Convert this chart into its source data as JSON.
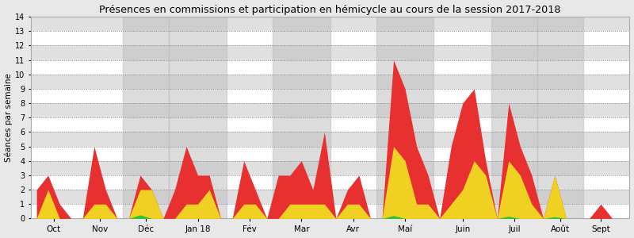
{
  "title": "Présences en commissions et participation en hémicycle au cours de la session 2017-2018",
  "ylabel": "Séances par semaine",
  "ylim": [
    0,
    14
  ],
  "yticks": [
    0,
    1,
    2,
    3,
    4,
    5,
    6,
    7,
    8,
    9,
    10,
    11,
    12,
    13,
    14
  ],
  "bg_color": "#e8e8e8",
  "bg_stripe_light": "#ebebeb",
  "bg_stripe_dark": "#c8c8c8",
  "month_labels": [
    "Oct",
    "Nov",
    "Déc",
    "Jan 18",
    "Fév",
    "Mar",
    "Avr",
    "Maí",
    "Juin",
    "Juil",
    "Août",
    "Sept"
  ],
  "month_starts": [
    0,
    4,
    8,
    12,
    17,
    21,
    26,
    30,
    35,
    40,
    44,
    48
  ],
  "month_ends": [
    4,
    8,
    12,
    17,
    21,
    26,
    30,
    35,
    40,
    44,
    48,
    51
  ],
  "shade_months": [
    2,
    3,
    5,
    7,
    9,
    10
  ],
  "n_points": 52,
  "x": [
    0,
    1,
    2,
    3,
    4,
    5,
    6,
    7,
    8,
    9,
    10,
    11,
    12,
    13,
    14,
    15,
    16,
    17,
    18,
    19,
    20,
    21,
    22,
    23,
    24,
    25,
    26,
    27,
    28,
    29,
    30,
    31,
    32,
    33,
    34,
    35,
    36,
    37,
    38,
    39,
    40,
    41,
    42,
    43,
    44,
    45,
    46,
    47,
    48,
    49,
    50,
    51
  ],
  "red": [
    2,
    3,
    1,
    0,
    0,
    5,
    2,
    0,
    0,
    3,
    2,
    0,
    2,
    5,
    3,
    3,
    0,
    0,
    4,
    2,
    0,
    3,
    3,
    4,
    2,
    6,
    0,
    2,
    3,
    0,
    0,
    11,
    9,
    5,
    3,
    0,
    5,
    8,
    9,
    4,
    0,
    8,
    5,
    3,
    0,
    3,
    0,
    0,
    0,
    1,
    0,
    0
  ],
  "yellow": [
    0,
    2,
    0,
    0,
    0,
    1,
    1,
    0,
    0,
    2,
    2,
    0,
    0,
    1,
    1,
    2,
    0,
    0,
    1,
    1,
    0,
    0,
    1,
    1,
    1,
    1,
    0,
    1,
    1,
    0,
    0,
    5,
    4,
    1,
    1,
    0,
    1,
    2,
    4,
    3,
    0,
    4,
    3,
    1,
    0,
    3,
    0,
    0,
    0,
    0,
    0,
    0
  ],
  "green": [
    0,
    0,
    0,
    0,
    0,
    0,
    0,
    0,
    0,
    0.25,
    0,
    0,
    0,
    0,
    0,
    0,
    0,
    0,
    0,
    0,
    0,
    0,
    0,
    0,
    0,
    0,
    0,
    0,
    0,
    0,
    0,
    0.2,
    0,
    0,
    0,
    0,
    0,
    0,
    0,
    0,
    0,
    0.15,
    0,
    0,
    0,
    0.12,
    0,
    0,
    0,
    0,
    0,
    0
  ],
  "color_red": "#e83030",
  "color_yellow": "#f0d020",
  "color_green": "#30c030",
  "border_color": "#aaaaaa",
  "horiz_stripe_colors": [
    "#ffffff",
    "#e0e0e0"
  ],
  "vert_shade_color": "#c0c0c0"
}
